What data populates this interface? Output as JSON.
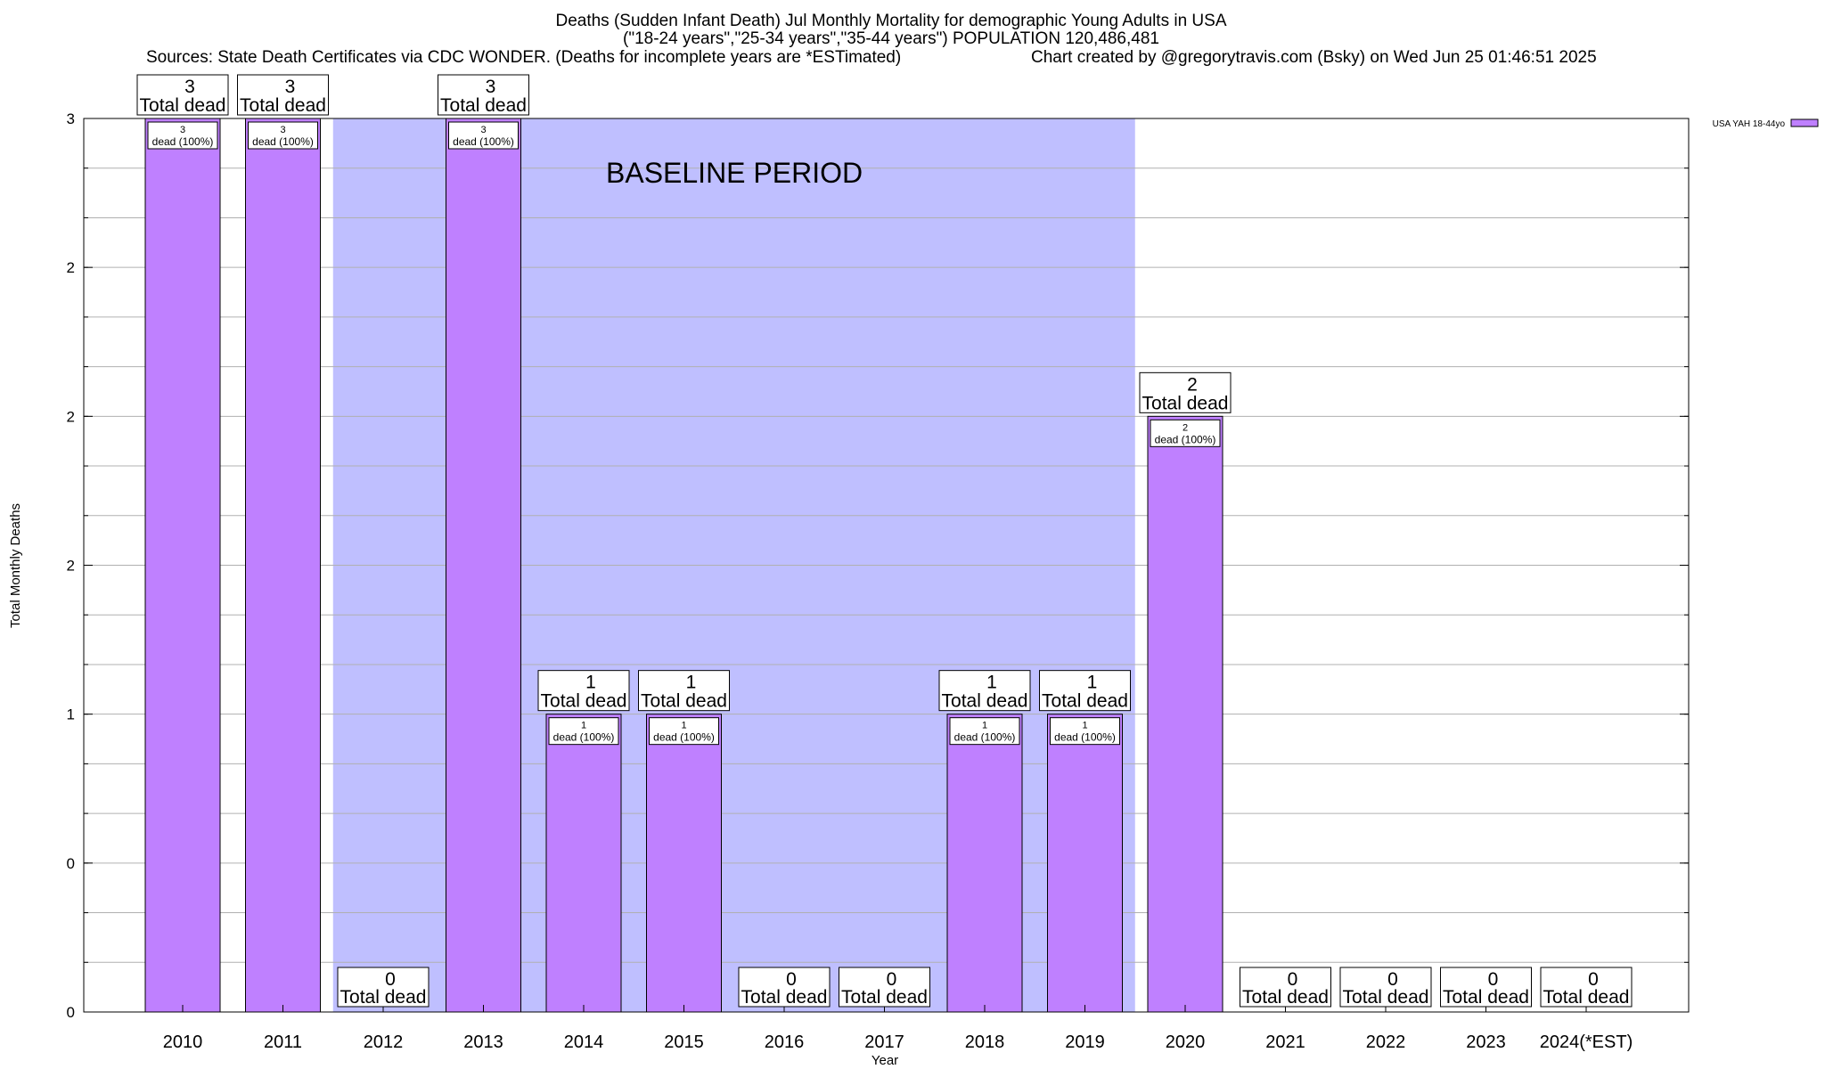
{
  "chart_data": {
    "type": "bar",
    "title_line1": "Deaths (Sudden Infant Death) Jul Monthly Mortality for demographic Young Adults in USA",
    "title_line2": "(\"18-24 years\",\"25-34 years\",\"35-44 years\") POPULATION 120,486,481",
    "sources": "Sources: State Death Certificates via CDC WONDER. (Deaths for incomplete years are *ESTimated)",
    "credit": "Chart created by @gregorytravis.com (Bsky) on Wed Jun 25 01:46:51 2025",
    "xlabel": "Year",
    "ylabel": "Total Monthly Deaths",
    "ylim": [
      0,
      3
    ],
    "y_ticks": [
      {
        "value": 0,
        "label": "0"
      },
      {
        "value": 0.5,
        "label": "0"
      },
      {
        "value": 1,
        "label": "1"
      },
      {
        "value": 1.5,
        "label": "2"
      },
      {
        "value": 2,
        "label": "2"
      },
      {
        "value": 2.5,
        "label": "2"
      },
      {
        "value": 3,
        "label": "3"
      }
    ],
    "categories": [
      "2010",
      "2011",
      "2012",
      "2013",
      "2014",
      "2015",
      "2016",
      "2017",
      "2018",
      "2019",
      "2020",
      "2021",
      "2022",
      "2023",
      "2024(*EST)"
    ],
    "series": [
      {
        "name": "USA YAH 18-44yo",
        "color": "#bf80ff",
        "values": [
          3,
          3,
          0,
          3,
          1,
          1,
          0,
          0,
          1,
          1,
          2,
          0,
          0,
          0,
          0
        ]
      }
    ],
    "total_label_word": "Total dead",
    "inner_label_suffix": "dead (100%)",
    "baseline": {
      "label": "BASELINE PERIOD",
      "start": "2012",
      "end": "2019",
      "color": "#bfbfff"
    },
    "grid": true,
    "legend_position": "top-right"
  }
}
